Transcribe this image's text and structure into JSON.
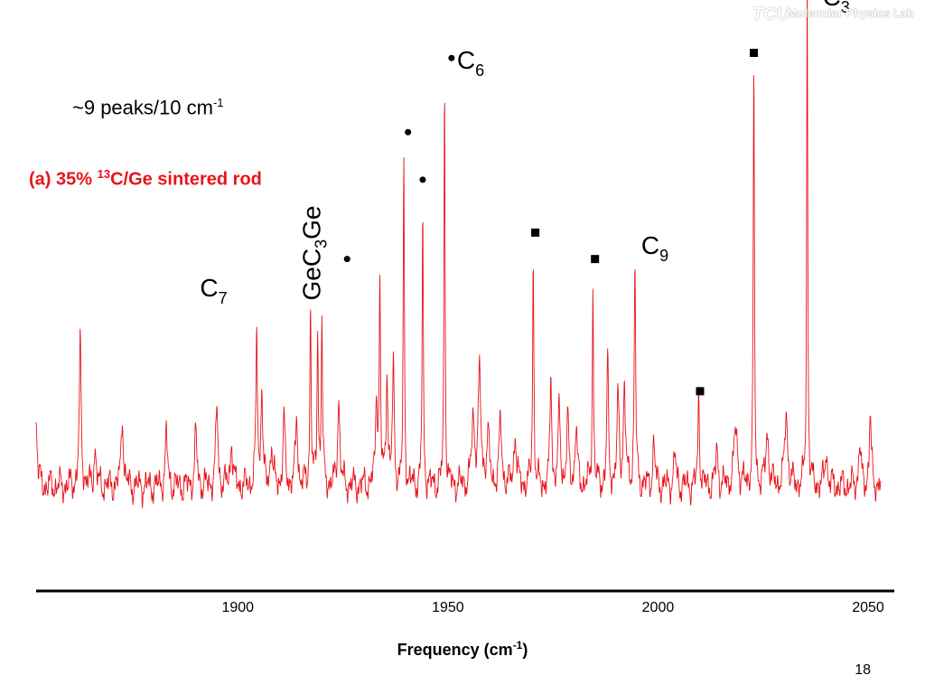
{
  "slide": {
    "peaks_note": "~9 peaks/10 cm",
    "peaks_note_sup": "-1",
    "sample_label_pre": "(a) 35% ",
    "sample_label_sup": "13",
    "sample_label_post": "C/Ge sintered  rod",
    "xlabel_pre": "Frequency (cm",
    "xlabel_sup": "-1",
    "xlabel_post": ")",
    "page_number": "18",
    "watermark_logo": "TCU",
    "watermark_text": "Molecular Physics Lab"
  },
  "colors": {
    "spectrum": "#e8141b",
    "axis": "#000000",
    "sample_label": "#e8141b"
  },
  "chart_data": {
    "type": "line",
    "title": "",
    "xlabel": "Frequency (cm-1)",
    "ylabel": "",
    "xlim": [
      1852,
      2053
    ],
    "ylim": [
      0,
      1.0
    ],
    "xticks": [
      1900,
      1950,
      2000,
      2050
    ],
    "xtick_labels": [
      "1900",
      "1950",
      "2000",
      "2050"
    ],
    "grid": false,
    "baseline": 0.08,
    "baseline_noise": 0.035,
    "series": [
      {
        "peaks": [
          {
            "x": 1852.0,
            "h": 0.13,
            "w": 0.3
          },
          {
            "x": 1862.5,
            "h": 0.26,
            "w": 0.28
          },
          {
            "x": 1866.0,
            "h": 0.07,
            "w": 0.3
          },
          {
            "x": 1872.5,
            "h": 0.14,
            "w": 0.3
          },
          {
            "x": 1883.0,
            "h": 0.1,
            "w": 0.3
          },
          {
            "x": 1890.0,
            "h": 0.1,
            "w": 0.3
          },
          {
            "x": 1895.0,
            "h": 0.15,
            "w": 0.3
          },
          {
            "x": 1898.5,
            "h": 0.09,
            "w": 0.3
          },
          {
            "x": 1904.5,
            "h": 0.29,
            "w": 0.22
          },
          {
            "x": 1905.7,
            "h": 0.2,
            "w": 0.22
          },
          {
            "x": 1908.0,
            "h": 0.08,
            "w": 0.3
          },
          {
            "x": 1911.0,
            "h": 0.12,
            "w": 0.3
          },
          {
            "x": 1914.0,
            "h": 0.13,
            "w": 0.3
          },
          {
            "x": 1917.3,
            "h": 0.34,
            "w": 0.18
          },
          {
            "x": 1919.0,
            "h": 0.3,
            "w": 0.18
          },
          {
            "x": 1920.0,
            "h": 0.31,
            "w": 0.18
          },
          {
            "x": 1924.0,
            "h": 0.17,
            "w": 0.3
          },
          {
            "x": 1933.0,
            "h": 0.18,
            "w": 0.25
          },
          {
            "x": 1933.8,
            "h": 0.37,
            "w": 0.18
          },
          {
            "x": 1935.5,
            "h": 0.22,
            "w": 0.25
          },
          {
            "x": 1937.0,
            "h": 0.22,
            "w": 0.25
          },
          {
            "x": 1939.5,
            "h": 0.62,
            "w": 0.16
          },
          {
            "x": 1944.0,
            "h": 0.52,
            "w": 0.16
          },
          {
            "x": 1949.2,
            "h": 0.78,
            "w": 0.15
          },
          {
            "x": 1956.0,
            "h": 0.12,
            "w": 0.4
          },
          {
            "x": 1957.5,
            "h": 0.2,
            "w": 0.4
          },
          {
            "x": 1959.5,
            "h": 0.1,
            "w": 0.35
          },
          {
            "x": 1962.5,
            "h": 0.12,
            "w": 0.35
          },
          {
            "x": 1966.0,
            "h": 0.1,
            "w": 0.35
          },
          {
            "x": 1970.3,
            "h": 0.43,
            "w": 0.18
          },
          {
            "x": 1974.5,
            "h": 0.22,
            "w": 0.22
          },
          {
            "x": 1976.5,
            "h": 0.14,
            "w": 0.3
          },
          {
            "x": 1978.5,
            "h": 0.12,
            "w": 0.3
          },
          {
            "x": 1980.5,
            "h": 0.11,
            "w": 0.3
          },
          {
            "x": 1984.5,
            "h": 0.37,
            "w": 0.18
          },
          {
            "x": 1988.0,
            "h": 0.24,
            "w": 0.22
          },
          {
            "x": 1990.5,
            "h": 0.16,
            "w": 0.3
          },
          {
            "x": 1992.0,
            "h": 0.18,
            "w": 0.3
          },
          {
            "x": 1994.5,
            "h": 0.42,
            "w": 0.2
          },
          {
            "x": 1999.0,
            "h": 0.08,
            "w": 0.3
          },
          {
            "x": 2004.0,
            "h": 0.06,
            "w": 0.3
          },
          {
            "x": 2009.7,
            "h": 0.17,
            "w": 0.22
          },
          {
            "x": 2014.0,
            "h": 0.07,
            "w": 0.3
          },
          {
            "x": 2018.5,
            "h": 0.11,
            "w": 0.5
          },
          {
            "x": 2022.8,
            "h": 0.8,
            "w": 0.16
          },
          {
            "x": 2026.0,
            "h": 0.1,
            "w": 0.4
          },
          {
            "x": 2030.5,
            "h": 0.14,
            "w": 0.4
          },
          {
            "x": 2035.5,
            "h": 0.97,
            "w": 0.15
          },
          {
            "x": 2040.0,
            "h": 0.07,
            "w": 0.3
          },
          {
            "x": 2048.0,
            "h": 0.08,
            "w": 0.3
          },
          {
            "x": 2050.5,
            "h": 0.13,
            "w": 0.28
          }
        ]
      }
    ],
    "annotations": [
      {
        "name": "c7-label",
        "text": "C",
        "sub": "7",
        "x": 1891.0,
        "y": 0.45,
        "marker": "none"
      },
      {
        "name": "gec3ge-label",
        "text": "GeC",
        "sub": "3",
        "tail": "Ge",
        "x": 1917.0,
        "y": 0.5,
        "marker": "none",
        "rotate": true
      },
      {
        "name": "c6-label",
        "text": "C",
        "sub": "6",
        "x": 1950.0,
        "y": 0.88,
        "marker": "dot"
      },
      {
        "name": "c9-label",
        "text": "C",
        "sub": "9",
        "x": 1996.0,
        "y": 0.53,
        "marker": "none"
      },
      {
        "name": "c3-label",
        "text": "C",
        "sub": "3",
        "x": 2037.0,
        "y": 1.0,
        "marker": "square"
      }
    ],
    "markers": [
      {
        "shape": "dot",
        "x": 1926.0,
        "y": 0.51
      },
      {
        "shape": "dot",
        "x": 1940.5,
        "y": 0.75
      },
      {
        "shape": "dot",
        "x": 1944.0,
        "y": 0.66
      },
      {
        "shape": "square",
        "x": 1970.8,
        "y": 0.56
      },
      {
        "shape": "square",
        "x": 1985.0,
        "y": 0.51
      },
      {
        "shape": "square",
        "x": 2010.0,
        "y": 0.26
      },
      {
        "shape": "square",
        "x": 2022.8,
        "y": 0.9
      }
    ]
  }
}
